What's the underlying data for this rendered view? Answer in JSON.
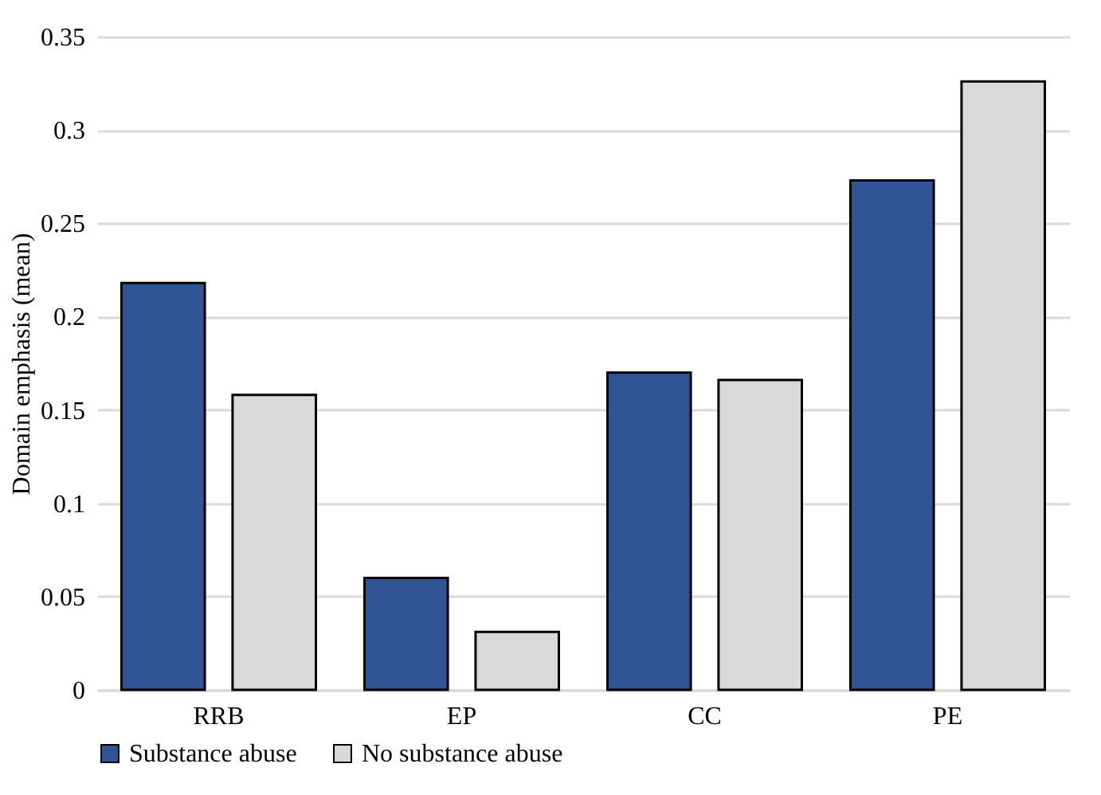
{
  "chart_data": {
    "type": "bar",
    "ylabel": "Domain emphasis (mean)",
    "categories": [
      "RRB",
      "EP",
      "CC",
      "PE"
    ],
    "series": [
      {
        "name": "Substance abuse",
        "color": "#2f5597",
        "values": [
          0.218,
          0.06,
          0.17,
          0.273
        ]
      },
      {
        "name": "No substance abuse",
        "color": "#d9d9d9",
        "values": [
          0.158,
          0.031,
          0.166,
          0.326
        ]
      }
    ],
    "ylim": [
      0,
      0.35
    ],
    "yticks": [
      0,
      0.05,
      0.1,
      0.15,
      0.2,
      0.25,
      0.3,
      0.35
    ],
    "grid": "y",
    "legend": "bottom"
  }
}
